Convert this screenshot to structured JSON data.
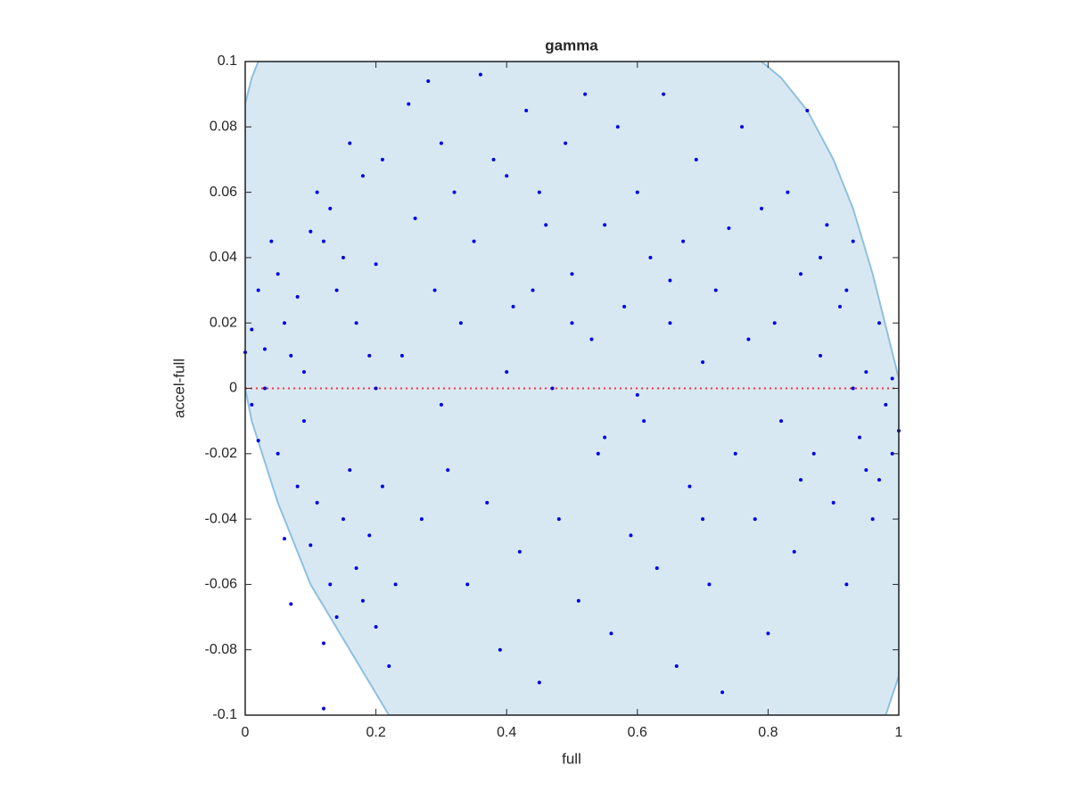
{
  "chart_data": {
    "type": "scatter",
    "title": "gamma",
    "x_label": "full",
    "y_label": "accel-full",
    "xlim": [
      0,
      1
    ],
    "ylim": [
      -0.1,
      0.1
    ],
    "xticks": [
      0,
      0.2,
      0.4,
      0.6,
      0.8,
      1
    ],
    "yticks": [
      -0.1,
      -0.08,
      -0.06,
      -0.04,
      -0.02,
      0,
      0.02,
      0.04,
      0.06,
      0.08,
      0.1
    ],
    "point_color": "#0000e6",
    "region_color": "#d8e8f3",
    "region_edge": "#8ec0e0",
    "refline_color": "#ff3030",
    "refline": 0,
    "region": {
      "x": [
        0.02,
        0.79,
        0.82,
        0.86,
        0.9,
        0.93,
        0.96,
        0.985,
        1,
        1,
        0.98,
        0.22,
        0.16,
        0.1,
        0.05,
        0.01,
        0,
        0,
        0.01
      ],
      "y": [
        0.1,
        0.1,
        0.095,
        0.085,
        0.07,
        0.055,
        0.035,
        0.015,
        0.003,
        -0.088,
        -0.1,
        -0.1,
        -0.08,
        -0.06,
        -0.035,
        -0.01,
        0,
        0.087,
        0.095
      ]
    },
    "x": [
      0.0,
      0.01,
      0.02,
      0.03,
      0.01,
      0.02,
      0.03,
      0.04,
      0.05,
      0.06,
      0.07,
      0.08,
      0.09,
      0.1,
      0.11,
      0.12,
      0.13,
      0.14,
      0.15,
      0.16,
      0.17,
      0.18,
      0.19,
      0.2,
      0.21,
      0.05,
      0.06,
      0.07,
      0.08,
      0.09,
      0.1,
      0.11,
      0.12,
      0.12,
      0.13,
      0.14,
      0.15,
      0.16,
      0.17,
      0.18,
      0.19,
      0.2,
      0.21,
      0.22,
      0.23,
      0.24,
      0.25,
      0.26,
      0.27,
      0.28,
      0.29,
      0.3,
      0.31,
      0.32,
      0.33,
      0.34,
      0.35,
      0.36,
      0.37,
      0.38,
      0.39,
      0.4,
      0.41,
      0.42,
      0.43,
      0.44,
      0.45,
      0.46,
      0.47,
      0.48,
      0.49,
      0.5,
      0.51,
      0.52,
      0.53,
      0.54,
      0.55,
      0.56,
      0.57,
      0.58,
      0.59,
      0.6,
      0.61,
      0.62,
      0.63,
      0.64,
      0.65,
      0.66,
      0.67,
      0.68,
      0.69,
      0.7,
      0.71,
      0.72,
      0.73,
      0.74,
      0.75,
      0.76,
      0.77,
      0.78,
      0.79,
      0.8,
      0.81,
      0.82,
      0.83,
      0.84,
      0.85,
      0.86,
      0.87,
      0.88,
      0.89,
      0.9,
      0.91,
      0.92,
      0.93,
      0.94,
      0.95,
      0.96,
      0.97,
      0.98,
      0.99,
      1.0,
      0.95,
      0.93,
      0.97,
      0.99,
      0.92,
      0.88,
      0.85,
      0.6,
      0.4,
      0.3,
      0.2,
      0.5,
      0.65,
      0.7,
      0.55,
      0.45
    ],
    "y": [
      0.011,
      0.018,
      0.03,
      0.012,
      -0.005,
      -0.016,
      0.0,
      0.045,
      0.035,
      0.02,
      0.01,
      0.028,
      0.005,
      0.048,
      0.06,
      0.045,
      0.055,
      0.03,
      0.04,
      0.075,
      0.02,
      0.065,
      0.01,
      0.038,
      0.07,
      -0.02,
      -0.046,
      -0.066,
      -0.03,
      -0.01,
      -0.048,
      -0.035,
      -0.078,
      -0.098,
      -0.06,
      -0.07,
      -0.04,
      -0.025,
      -0.055,
      -0.065,
      -0.045,
      -0.073,
      -0.03,
      -0.085,
      -0.06,
      0.01,
      0.087,
      0.052,
      -0.04,
      0.094,
      0.03,
      0.075,
      -0.025,
      0.06,
      0.02,
      -0.06,
      0.045,
      0.096,
      -0.035,
      0.07,
      -0.08,
      0.065,
      0.025,
      -0.05,
      0.085,
      0.03,
      -0.09,
      0.05,
      0.0,
      -0.04,
      0.075,
      0.035,
      -0.065,
      0.09,
      0.015,
      -0.02,
      0.05,
      -0.075,
      0.08,
      0.025,
      -0.045,
      0.06,
      -0.01,
      0.04,
      -0.055,
      0.09,
      0.02,
      -0.085,
      0.045,
      -0.03,
      0.07,
      0.008,
      -0.06,
      0.03,
      -0.093,
      0.049,
      -0.02,
      0.08,
      0.015,
      -0.04,
      0.055,
      -0.075,
      0.02,
      -0.01,
      0.06,
      -0.05,
      0.035,
      0.085,
      -0.02,
      0.01,
      0.05,
      -0.035,
      0.025,
      -0.06,
      0.045,
      -0.015,
      0.005,
      -0.04,
      0.02,
      -0.005,
      0.003,
      -0.013,
      -0.025,
      0.0,
      -0.028,
      -0.02,
      0.03,
      0.04,
      -0.028,
      -0.002,
      0.005,
      -0.005,
      0.0,
      0.02,
      0.033,
      -0.04,
      -0.015,
      0.06
    ]
  }
}
